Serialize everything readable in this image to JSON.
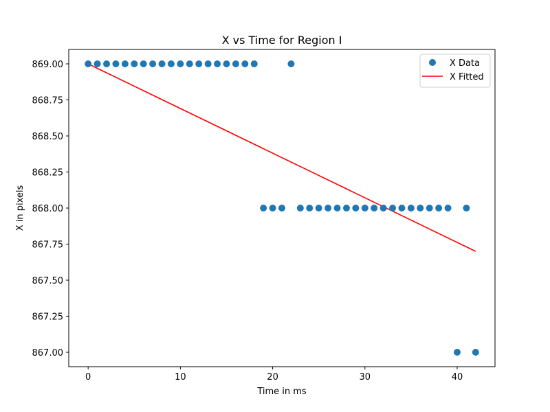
{
  "chart_data": {
    "type": "scatter",
    "title": "X vs Time for Region I",
    "xlabel": "Time in ms",
    "ylabel": "X in pixels",
    "xlim": [
      -2.1,
      44.1
    ],
    "ylim": [
      866.9,
      869.1
    ],
    "xticks": [
      0,
      10,
      20,
      30,
      40
    ],
    "yticks": [
      867.0,
      867.25,
      867.5,
      867.75,
      868.0,
      868.25,
      868.5,
      868.75,
      869.0
    ],
    "ytick_labels": [
      "867.00",
      "867.25",
      "867.50",
      "867.75",
      "868.00",
      "868.25",
      "868.50",
      "868.75",
      "869.00"
    ],
    "grid": false,
    "legend_position": "top-right",
    "series": [
      {
        "name": "X Data",
        "kind": "scatter",
        "color": "#1f77b4",
        "x": [
          0,
          1,
          2,
          3,
          4,
          5,
          6,
          7,
          8,
          9,
          10,
          11,
          12,
          13,
          14,
          15,
          16,
          17,
          18,
          19,
          20,
          21,
          22,
          23,
          24,
          25,
          26,
          27,
          28,
          29,
          30,
          31,
          32,
          33,
          34,
          35,
          36,
          37,
          38,
          39,
          40,
          41,
          42
        ],
        "y": [
          869,
          869,
          869,
          869,
          869,
          869,
          869,
          869,
          869,
          869,
          869,
          869,
          869,
          869,
          869,
          869,
          869,
          869,
          869,
          868,
          868,
          868,
          869,
          868,
          868,
          868,
          868,
          868,
          868,
          868,
          868,
          868,
          868,
          868,
          868,
          868,
          868,
          868,
          868,
          868,
          867,
          868,
          867
        ]
      },
      {
        "name": "X Fitted",
        "kind": "line",
        "color": "#ff0000",
        "x": [
          0,
          42
        ],
        "y": [
          869.0,
          867.7
        ]
      }
    ]
  }
}
